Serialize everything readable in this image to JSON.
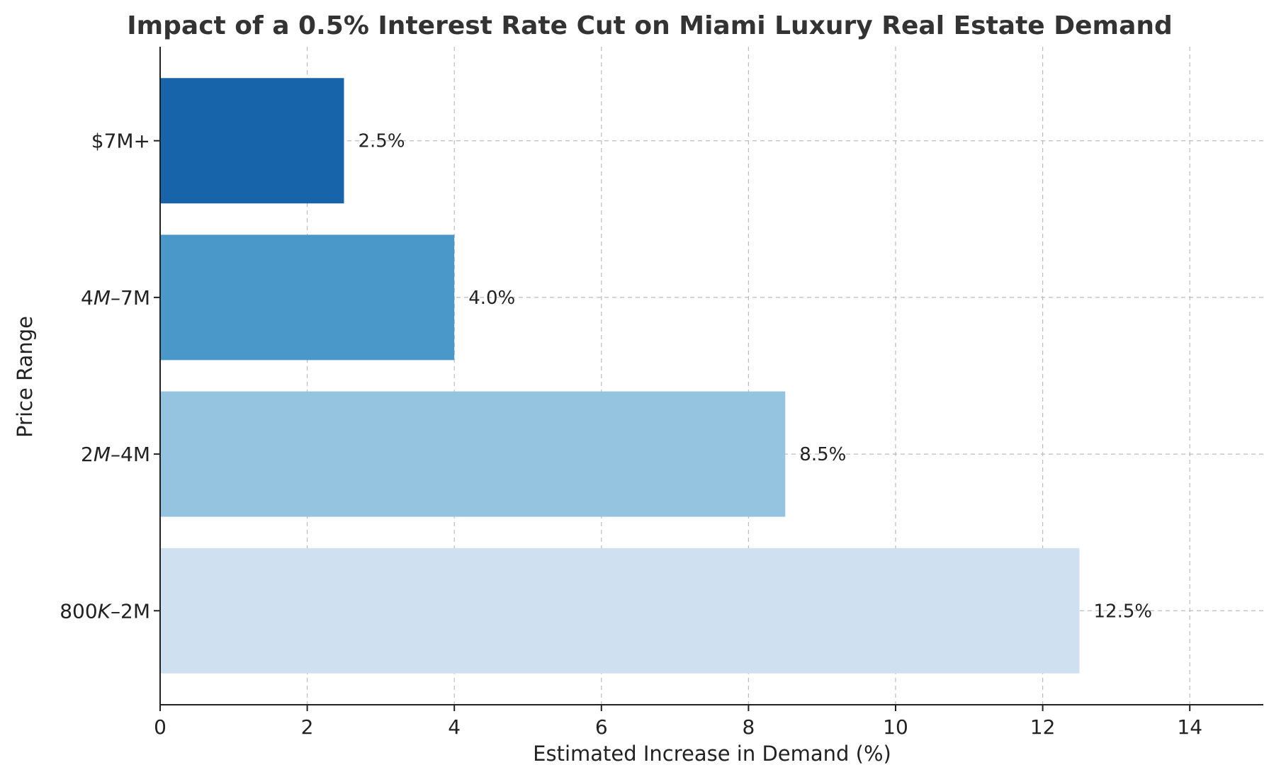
{
  "chart_data": {
    "type": "bar",
    "orientation": "horizontal",
    "title": "Impact of a 0.5% Interest Rate Cut on Miami Luxury Real Estate Demand",
    "xlabel": "Estimated Increase in Demand (%)",
    "ylabel": "Price Range",
    "categories": [
      "800K–2M",
      "2M–4M",
      "4M–7M",
      "$7M+"
    ],
    "category_labels": [
      {
        "prefix": "800",
        "italic": "K",
        "suffix": "–2M"
      },
      {
        "prefix": "2",
        "italic": "M",
        "suffix": "–4M"
      },
      {
        "prefix": "4",
        "italic": "M",
        "suffix": "–7M"
      },
      {
        "prefix": "$7M+",
        "italic": "",
        "suffix": ""
      }
    ],
    "values": [
      12.5,
      8.5,
      4.0,
      2.5
    ],
    "value_labels": [
      "12.5%",
      "8.5%",
      "4.0%",
      "2.5%"
    ],
    "colors": [
      "#cfe1f1",
      "#94c4e0",
      "#4a98c9",
      "#1764ab"
    ],
    "xlim": [
      0,
      15
    ],
    "xticks": [
      0,
      2,
      4,
      6,
      8,
      10,
      12,
      14
    ],
    "grid": true
  }
}
